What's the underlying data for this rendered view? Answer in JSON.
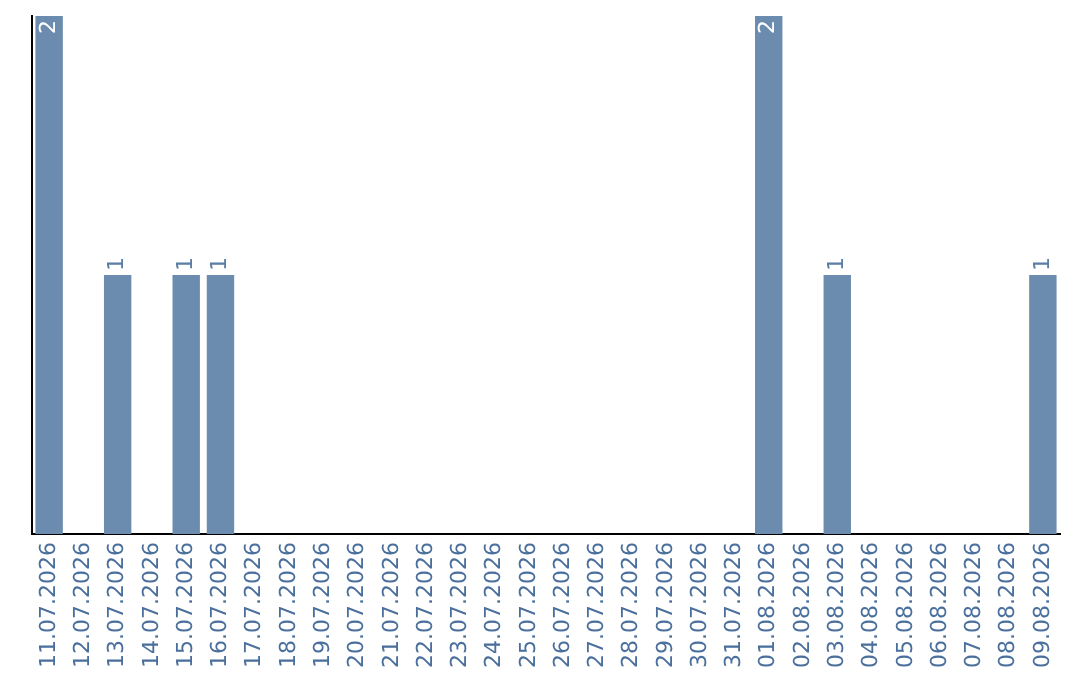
{
  "chart_data": {
    "type": "bar",
    "categories": [
      "11.07.2026",
      "12.07.2026",
      "13.07.2026",
      "14.07.2026",
      "15.07.2026",
      "16.07.2026",
      "17.07.2026",
      "18.07.2026",
      "19.07.2026",
      "20.07.2026",
      "21.07.2026",
      "22.07.2026",
      "23.07.2026",
      "24.07.2026",
      "25.07.2026",
      "26.07.2026",
      "27.07.2026",
      "28.07.2026",
      "29.07.2026",
      "30.07.2026",
      "31.07.2026",
      "01.08.2026",
      "02.08.2026",
      "03.08.2026",
      "04.08.2026",
      "05.08.2026",
      "06.08.2026",
      "07.08.2026",
      "08.08.2026",
      "09.08.2026"
    ],
    "values": [
      2,
      0,
      1,
      0,
      1,
      1,
      0,
      0,
      0,
      0,
      0,
      0,
      0,
      0,
      0,
      0,
      0,
      0,
      0,
      0,
      0,
      2,
      0,
      1,
      0,
      0,
      0,
      0,
      0,
      1
    ],
    "value_labels": [
      "2",
      null,
      "1",
      null,
      "1",
      "1",
      null,
      null,
      null,
      null,
      null,
      null,
      null,
      null,
      null,
      null,
      null,
      null,
      null,
      null,
      null,
      "2",
      null,
      "1",
      null,
      null,
      null,
      null,
      null,
      "1"
    ],
    "color": "#6b8cae",
    "grid": false,
    "legend": false
  }
}
